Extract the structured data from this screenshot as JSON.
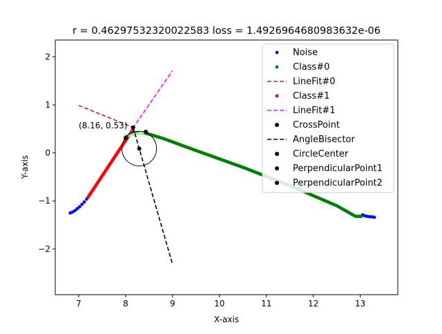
{
  "chart_data": {
    "type": "scatter",
    "title": "r = 0.46297532320022583 loss = 1.4926964680983632e-06",
    "xlabel": "X-axis",
    "ylabel": "Y-axis",
    "xlim": [
      6.5,
      13.8
    ],
    "ylim": [
      -2.95,
      2.35
    ],
    "xticks": [
      7,
      8,
      9,
      10,
      11,
      12,
      13
    ],
    "yticks": [
      -2,
      -1,
      0,
      1,
      2
    ],
    "grid": false,
    "legend_position": "upper-right",
    "annotation": {
      "text": "(8.16, 0.53)",
      "x": 7.0,
      "y": 0.57
    },
    "noise": {
      "name": "Noise",
      "color": "#0000ff",
      "segments": [
        {
          "x_from": 6.82,
          "x_to": 7.18,
          "y_from": -1.25,
          "y_to": -0.95
        },
        {
          "x_from": 13.05,
          "x_to": 13.3,
          "y_from": -1.28,
          "y_to": -1.34
        }
      ],
      "points": [
        [
          6.82,
          -1.25
        ],
        [
          6.87,
          -1.23
        ],
        [
          6.92,
          -1.2
        ],
        [
          6.97,
          -1.16
        ],
        [
          7.02,
          -1.12
        ],
        [
          7.07,
          -1.07
        ],
        [
          7.12,
          -1.02
        ],
        [
          7.17,
          -0.96
        ],
        [
          13.05,
          -1.29
        ],
        [
          13.1,
          -1.31
        ],
        [
          13.15,
          -1.32
        ],
        [
          13.2,
          -1.33
        ],
        [
          13.25,
          -1.33
        ],
        [
          13.3,
          -1.34
        ]
      ]
    },
    "class0": {
      "name": "Class#0",
      "color": "#008000",
      "curve": [
        [
          8.0,
          0.33
        ],
        [
          8.2,
          0.42
        ],
        [
          8.4,
          0.42
        ],
        [
          8.8,
          0.3
        ],
        [
          9.5,
          0.05
        ],
        [
          10.5,
          -0.3
        ],
        [
          11.5,
          -0.68
        ],
        [
          12.5,
          -1.1
        ],
        [
          12.9,
          -1.32
        ],
        [
          13.05,
          -1.32
        ]
      ]
    },
    "class1": {
      "name": "Class#1",
      "color": "#ff0000",
      "x_from": 7.2,
      "x_to": 8.15,
      "y_from": -0.92,
      "y_to": 0.48
    },
    "linefit0": {
      "name": "LineFit#0",
      "color": "#a52a2a",
      "x": [
        7.0,
        8.16
      ],
      "y": [
        0.99,
        0.53
      ]
    },
    "linefit1": {
      "name": "LineFit#1",
      "color": "#ff00ff",
      "x": [
        8.0,
        9.0
      ],
      "y": [
        0.3,
        1.71
      ]
    },
    "bisector": {
      "name": "AngleBisector",
      "color": "#000000",
      "x": [
        8.16,
        9.0
      ],
      "y": [
        0.53,
        -2.32
      ]
    },
    "cross_point": {
      "name": "CrossPoint",
      "x": 8.16,
      "y": 0.53
    },
    "circle_center": {
      "name": "CircleCenter",
      "x": 8.29,
      "y": 0.09
    },
    "circle_radius": 0.36,
    "perp_point1": {
      "name": "PerpendicularPoint1",
      "x": 8.43,
      "y": 0.44
    },
    "perp_point2": {
      "name": "PerpendicularPoint2",
      "x": 8.0,
      "y": 0.31
    },
    "highlight_segment": {
      "color": "#aef0ae",
      "x": [
        8.05,
        8.45
      ],
      "y": [
        0.36,
        0.44
      ]
    },
    "legend": [
      "Noise",
      "Class#0",
      "LineFit#0",
      "Class#1",
      "LineFit#1",
      "CrossPoint",
      "AngleBisector",
      "CircleCenter",
      "PerpendicularPoint1",
      "PerpendicularPoint2"
    ]
  }
}
